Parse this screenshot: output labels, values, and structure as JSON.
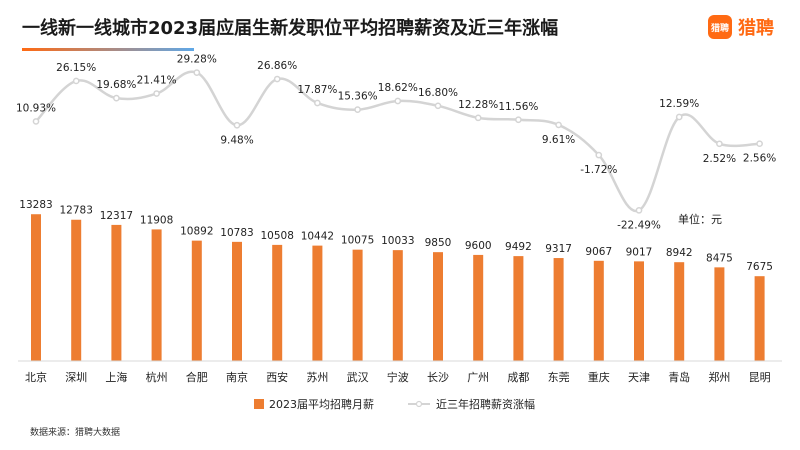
{
  "header": {
    "title": "一线新一线城市2023届应届生新发职位平均招聘薪资及近三年涨幅",
    "logo_mark": "猎聘",
    "logo_text": "猎聘"
  },
  "footer": {
    "source": "数据来源：猎聘大数据"
  },
  "colors": {
    "bar": "#ed7d31",
    "line": "#d4d4d4",
    "line_marker": "#ffffff",
    "brand": "#ff6a13"
  },
  "chart_data": {
    "type": "bar",
    "categories": [
      "北京",
      "深圳",
      "上海",
      "杭州",
      "合肥",
      "南京",
      "西安",
      "苏州",
      "武汉",
      "宁波",
      "长沙",
      "广州",
      "成都",
      "东莞",
      "重庆",
      "天津",
      "青岛",
      "郑州",
      "昆明"
    ],
    "series": [
      {
        "name": "2023届平均招聘月薪",
        "type": "bar",
        "values": [
          13283,
          12783,
          12317,
          11908,
          10892,
          10783,
          10508,
          10442,
          10075,
          10033,
          9850,
          9600,
          9492,
          9317,
          9067,
          9017,
          8942,
          8475,
          7675
        ]
      },
      {
        "name": "近三年招聘薪资涨幅",
        "type": "line",
        "values": [
          10.93,
          26.15,
          19.68,
          21.41,
          29.28,
          9.48,
          26.86,
          17.87,
          15.36,
          18.62,
          16.8,
          12.28,
          11.56,
          9.61,
          -1.72,
          -22.49,
          12.59,
          2.52,
          2.56
        ],
        "labels": [
          "10.93%",
          "26.15%",
          "19.68%",
          "21.41%",
          "29.28%",
          "9.48%",
          "26.86%",
          "17.87%",
          "15.36%",
          "18.62%",
          "16.80%",
          "12.28%",
          "11.56%",
          "9.61%",
          "-1.72%",
          "-22.49%",
          "12.59%",
          "2.52%",
          "2.56%"
        ]
      }
    ],
    "unit_label": "单位：元",
    "legend_position": "bottom",
    "grid": false
  }
}
